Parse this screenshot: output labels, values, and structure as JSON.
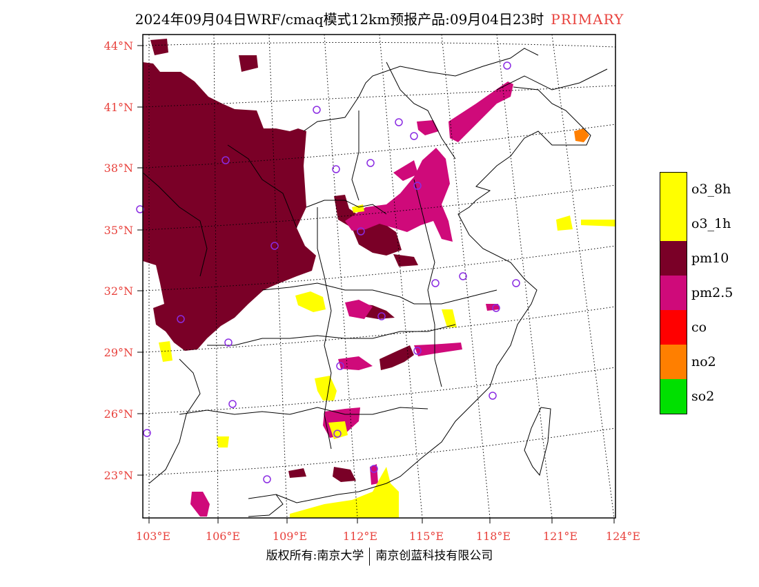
{
  "title": {
    "main": "2024年09月04日WRF/cmaq模式12km预报产品:09月04日23时",
    "tag": "PRIMARY",
    "tag_color": "#e8413c"
  },
  "axes": {
    "lat_labels": [
      "44°N",
      "41°N",
      "38°N",
      "35°N",
      "32°N",
      "29°N",
      "26°N",
      "23°N"
    ],
    "lon_labels": [
      "103°E",
      "106°E",
      "109°E",
      "112°E",
      "115°E",
      "118°E",
      "121°E",
      "124°E"
    ],
    "label_color": "#e8413c"
  },
  "legend": {
    "items": [
      {
        "label": "o3_8h",
        "color": "#ffff00"
      },
      {
        "label": "o3_1h",
        "color": "#ffff00"
      },
      {
        "label": "pm10",
        "color": "#7a0027"
      },
      {
        "label": "pm2.5",
        "color": "#cf0a7a"
      },
      {
        "label": "co",
        "color": "#ff0000"
      },
      {
        "label": "no2",
        "color": "#ff7f00"
      },
      {
        "label": "so2",
        "color": "#00e000"
      }
    ]
  },
  "footer": {
    "left": "版权所有:南京大学",
    "right": "南京创蓝科技有限公司"
  },
  "map": {
    "colors": {
      "pm10": "#7a0027",
      "pm25": "#cf0a7a",
      "o3": "#ffff00",
      "no2": "#ff7f00",
      "station": "#8a2be2"
    }
  }
}
